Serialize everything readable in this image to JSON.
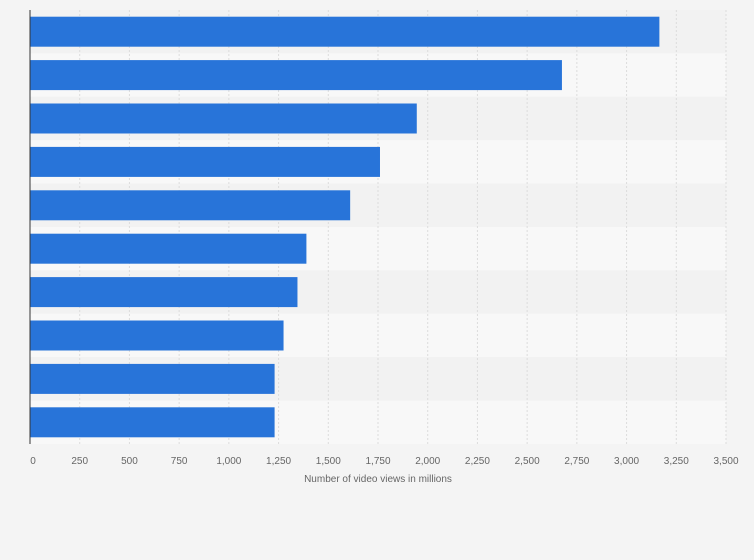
{
  "chart_data": {
    "type": "bar",
    "orientation": "horizontal",
    "categories": [
      "",
      "",
      "",
      "",
      "",
      "",
      "",
      "",
      "",
      ""
    ],
    "values": [
      3165,
      2675,
      1945,
      1760,
      1610,
      1390,
      1345,
      1275,
      1230,
      1230
    ],
    "title": "",
    "xlabel": "Number of video views in millions",
    "ylabel": "",
    "xlim": [
      0,
      3500
    ],
    "xticks": [
      0,
      250,
      500,
      750,
      1000,
      1250,
      1500,
      1750,
      2000,
      2250,
      2500,
      2750,
      3000,
      3250,
      3500
    ],
    "xtick_labels": [
      "0",
      "250",
      "500",
      "750",
      "1,000",
      "1,250",
      "1,500",
      "1,750",
      "2,000",
      "2,250",
      "2,500",
      "2,750",
      "3,000",
      "3,250",
      "3,500"
    ],
    "grid": true,
    "legend": "none",
    "colors": {
      "bar": "#2874d9",
      "grid": "#dcdcdc",
      "band_dark": "#f2f2f2",
      "band_light": "#f8f8f8",
      "axis": "#333333",
      "background": "#f4f4f4"
    }
  }
}
